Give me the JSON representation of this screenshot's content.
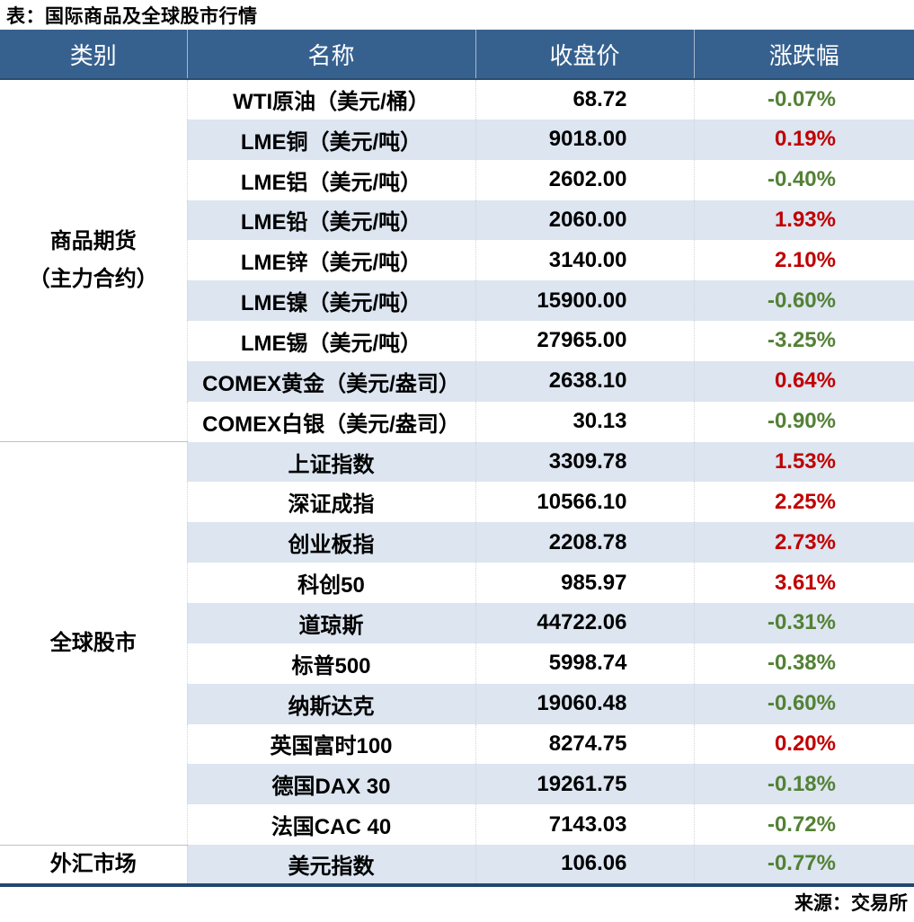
{
  "title": "表：国际商品及全球股市行情",
  "source": "来源：交易所",
  "colors": {
    "header_bg": "#36618F",
    "stripe": "#DCE5F0",
    "up": "#C00000",
    "down": "#538135",
    "table_border": "#24476F"
  },
  "table": {
    "headers": [
      "类别",
      "名称",
      "收盘价",
      "涨跌幅"
    ],
    "groups": [
      {
        "category_lines": [
          "商品期货",
          "（主力合约）"
        ],
        "rows": [
          {
            "name": "WTI原油（美元/桶）",
            "close": "68.72",
            "change": "-0.07%"
          },
          {
            "name": "LME铜（美元/吨）",
            "close": "9018.00",
            "change": "0.19%"
          },
          {
            "name": "LME铝（美元/吨）",
            "close": "2602.00",
            "change": "-0.40%"
          },
          {
            "name": "LME铅（美元/吨）",
            "close": "2060.00",
            "change": "1.93%"
          },
          {
            "name": "LME锌（美元/吨）",
            "close": "3140.00",
            "change": "2.10%"
          },
          {
            "name": "LME镍（美元/吨）",
            "close": "15900.00",
            "change": "-0.60%"
          },
          {
            "name": "LME锡（美元/吨）",
            "close": "27965.00",
            "change": "-3.25%"
          },
          {
            "name": "COMEX黄金（美元/盎司）",
            "close": "2638.10",
            "change": "0.64%"
          },
          {
            "name": "COMEX白银（美元/盎司）",
            "close": "30.13",
            "change": "-0.90%"
          }
        ]
      },
      {
        "category_lines": [
          "全球股市"
        ],
        "rows": [
          {
            "name": "上证指数",
            "close": "3309.78",
            "change": "1.53%"
          },
          {
            "name": "深证成指",
            "close": "10566.10",
            "change": "2.25%"
          },
          {
            "name": "创业板指",
            "close": "2208.78",
            "change": "2.73%"
          },
          {
            "name": "科创50",
            "close": "985.97",
            "change": "3.61%"
          },
          {
            "name": "道琼斯",
            "close": "44722.06",
            "change": "-0.31%"
          },
          {
            "name": "标普500",
            "close": "5998.74",
            "change": "-0.38%"
          },
          {
            "name": "纳斯达克",
            "close": "19060.48",
            "change": "-0.60%"
          },
          {
            "name": "英国富时100",
            "close": "8274.75",
            "change": "0.20%"
          },
          {
            "name": "德国DAX 30",
            "close": "19261.75",
            "change": "-0.18%"
          },
          {
            "name": "法国CAC 40",
            "close": "7143.03",
            "change": "-0.72%"
          }
        ]
      },
      {
        "category_lines": [
          "外汇市场"
        ],
        "rows": [
          {
            "name": "美元指数",
            "close": "106.06",
            "change": "-0.77%"
          }
        ]
      }
    ]
  },
  "chart_data": {
    "type": "table",
    "title": "表：国际商品及全球股市行情",
    "columns": [
      "类别",
      "名称",
      "收盘价",
      "涨跌幅"
    ],
    "rows": [
      [
        "商品期货（主力合约）",
        "WTI原油（美元/桶）",
        68.72,
        "-0.07%"
      ],
      [
        "商品期货（主力合约）",
        "LME铜（美元/吨）",
        9018.0,
        "0.19%"
      ],
      [
        "商品期货（主力合约）",
        "LME铝（美元/吨）",
        2602.0,
        "-0.40%"
      ],
      [
        "商品期货（主力合约）",
        "LME铅（美元/吨）",
        2060.0,
        "1.93%"
      ],
      [
        "商品期货（主力合约）",
        "LME锌（美元/吨）",
        3140.0,
        "2.10%"
      ],
      [
        "商品期货（主力合约）",
        "LME镍（美元/吨）",
        15900.0,
        "-0.60%"
      ],
      [
        "商品期货（主力合约）",
        "LME锡（美元/吨）",
        27965.0,
        "-3.25%"
      ],
      [
        "商品期货（主力合约）",
        "COMEX黄金（美元/盎司）",
        2638.1,
        "0.64%"
      ],
      [
        "商品期货（主力合约）",
        "COMEX白银（美元/盎司）",
        30.13,
        "-0.90%"
      ],
      [
        "全球股市",
        "上证指数",
        3309.78,
        "1.53%"
      ],
      [
        "全球股市",
        "深证成指",
        10566.1,
        "2.25%"
      ],
      [
        "全球股市",
        "创业板指",
        2208.78,
        "2.73%"
      ],
      [
        "全球股市",
        "科创50",
        985.97,
        "3.61%"
      ],
      [
        "全球股市",
        "道琼斯",
        44722.06,
        "-0.31%"
      ],
      [
        "全球股市",
        "标普500",
        5998.74,
        "-0.38%"
      ],
      [
        "全球股市",
        "纳斯达克",
        19060.48,
        "-0.60%"
      ],
      [
        "全球股市",
        "英国富时100",
        8274.75,
        "0.20%"
      ],
      [
        "全球股市",
        "德国DAX 30",
        19261.75,
        "-0.18%"
      ],
      [
        "全球股市",
        "法国CAC 40",
        7143.03,
        "-0.72%"
      ],
      [
        "外汇市场",
        "美元指数",
        106.06,
        "-0.77%"
      ]
    ],
    "color_convention": {
      "positive": "#C00000",
      "negative": "#538135"
    },
    "source": "来源：交易所"
  }
}
